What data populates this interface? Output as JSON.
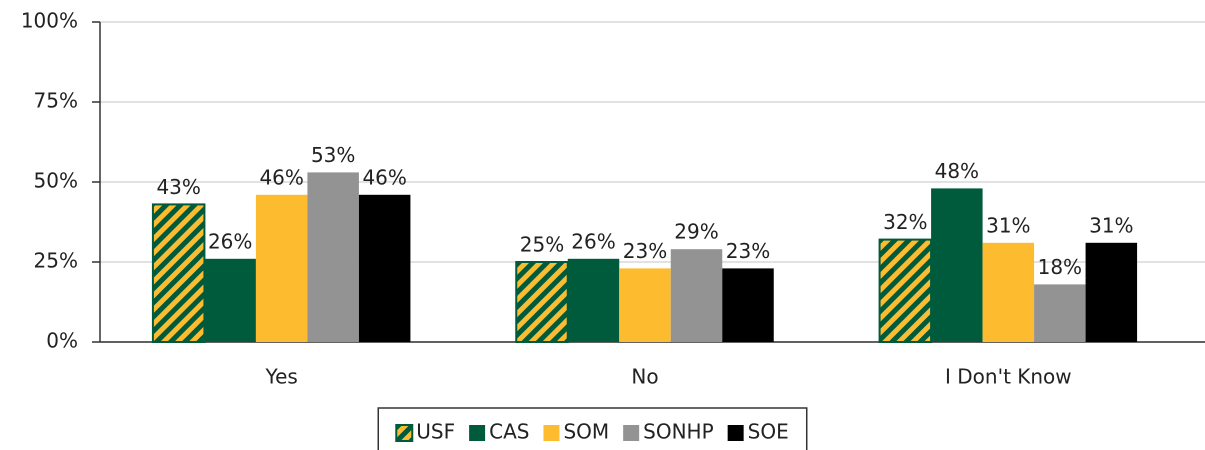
{
  "chart_data": {
    "type": "bar",
    "categories": [
      "Yes",
      "No",
      "I Don't Know"
    ],
    "series": [
      {
        "name": "USF",
        "color": "#fdbb30",
        "pattern": "hatched",
        "hatch_color": "#005a3c",
        "values": [
          43,
          25,
          32
        ],
        "value_labels": [
          "43%",
          "25%",
          "32%"
        ]
      },
      {
        "name": "CAS",
        "color": "#005a3c",
        "values": [
          26,
          26,
          48
        ],
        "value_labels": [
          "26%",
          "26%",
          "48%"
        ]
      },
      {
        "name": "SOM",
        "color": "#fdbb30",
        "values": [
          46,
          23,
          31
        ],
        "value_labels": [
          "46%",
          "23%",
          "31%"
        ]
      },
      {
        "name": "SONHP",
        "color": "#939393",
        "values": [
          53,
          29,
          18
        ],
        "value_labels": [
          "53%",
          "29%",
          "18%"
        ]
      },
      {
        "name": "SOE",
        "color": "#000000",
        "values": [
          46,
          23,
          31
        ],
        "value_labels": [
          "46%",
          "23%",
          "31%"
        ]
      }
    ],
    "ylim": [
      0,
      100
    ],
    "yticks": [
      {
        "value": 0,
        "label": "0%"
      },
      {
        "value": 25,
        "label": "25%"
      },
      {
        "value": 50,
        "label": "50%"
      },
      {
        "value": 75,
        "label": "75%"
      },
      {
        "value": 100,
        "label": "100%"
      }
    ],
    "grid": true,
    "legend": "bottom"
  }
}
